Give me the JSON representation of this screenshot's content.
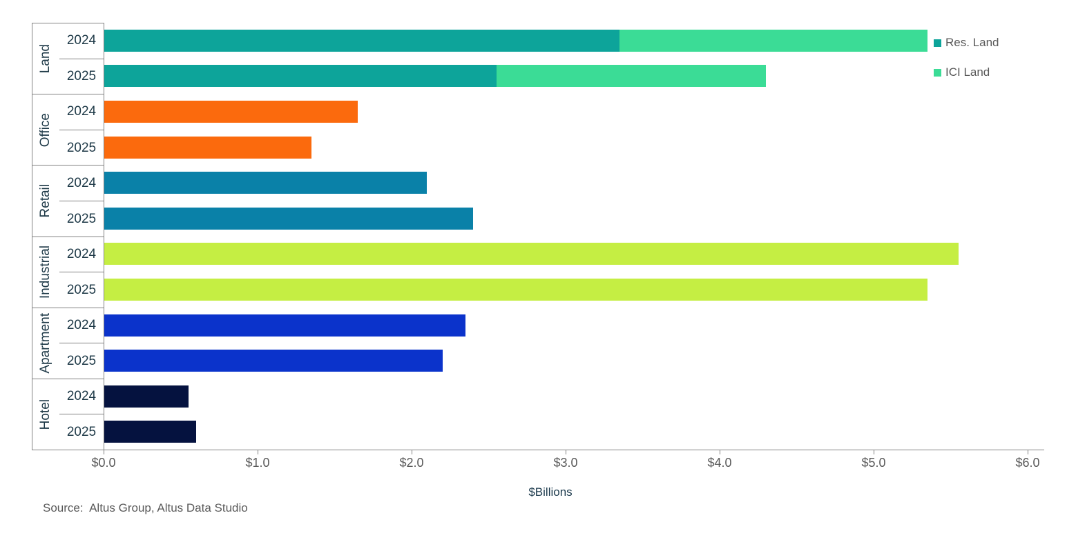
{
  "chart_data": {
    "type": "bar",
    "orientation": "horizontal",
    "stacked": true,
    "title": "",
    "xlabel": "$Billions",
    "ylabel": "",
    "xlim": [
      0,
      6
    ],
    "x_ticks": [
      "$0.0",
      "$1.0",
      "$2.0",
      "$3.0",
      "$4.0",
      "$5.0",
      "$6.0"
    ],
    "x_tick_values": [
      0,
      1,
      2,
      3,
      4,
      5,
      6
    ],
    "grid": false,
    "legend_position": "top-right",
    "legend": [
      {
        "label": "Res. Land",
        "color": "#0DA49A"
      },
      {
        "label": "ICI Land",
        "color": "#3BDC96"
      }
    ],
    "units": "$Billions",
    "groups": [
      {
        "category": "Land",
        "rows": [
          {
            "year": "2024",
            "segments": [
              {
                "name": "Res. Land",
                "value": 3.35,
                "color": "#0DA49A"
              },
              {
                "name": "ICI Land",
                "value": 2.0,
                "color": "#3BDC96"
              }
            ]
          },
          {
            "year": "2025",
            "segments": [
              {
                "name": "Res. Land",
                "value": 2.55,
                "color": "#0DA49A"
              },
              {
                "name": "ICI Land",
                "value": 1.75,
                "color": "#3BDC96"
              }
            ]
          }
        ]
      },
      {
        "category": "Office",
        "rows": [
          {
            "year": "2024",
            "segments": [
              {
                "name": "Office",
                "value": 1.65,
                "color": "#FB6A0D"
              }
            ]
          },
          {
            "year": "2025",
            "segments": [
              {
                "name": "Office",
                "value": 1.35,
                "color": "#FB6A0D"
              }
            ]
          }
        ]
      },
      {
        "category": "Retail",
        "rows": [
          {
            "year": "2024",
            "segments": [
              {
                "name": "Retail",
                "value": 2.1,
                "color": "#0A81A8"
              }
            ]
          },
          {
            "year": "2025",
            "segments": [
              {
                "name": "Retail",
                "value": 2.4,
                "color": "#0A81A8"
              }
            ]
          }
        ]
      },
      {
        "category": "Industrial",
        "rows": [
          {
            "year": "2024",
            "segments": [
              {
                "name": "Industrial",
                "value": 5.55,
                "color": "#C5EE43"
              }
            ]
          },
          {
            "year": "2025",
            "segments": [
              {
                "name": "Industrial",
                "value": 5.35,
                "color": "#C5EE43"
              }
            ]
          }
        ]
      },
      {
        "category": "Apartment",
        "rows": [
          {
            "year": "2024",
            "segments": [
              {
                "name": "Apartment",
                "value": 2.35,
                "color": "#0B33CB"
              }
            ]
          },
          {
            "year": "2025",
            "segments": [
              {
                "name": "Apartment",
                "value": 2.2,
                "color": "#0B33CB"
              }
            ]
          }
        ]
      },
      {
        "category": "Hotel",
        "rows": [
          {
            "year": "2024",
            "segments": [
              {
                "name": "Hotel",
                "value": 0.55,
                "color": "#05123F"
              }
            ]
          },
          {
            "year": "2025",
            "segments": [
              {
                "name": "Hotel",
                "value": 0.6,
                "color": "#05123F"
              }
            ]
          }
        ]
      }
    ]
  },
  "footer": {
    "source": "Source:  Altus Group, Altus Data Studio"
  },
  "ui_colors": {
    "axis_line": "#808080",
    "tick_text": "#595959",
    "category_text": "#1E3947",
    "xlabel_text": "#1C3A4D",
    "legend_text": "#595959",
    "background": "#FFFFFF"
  }
}
